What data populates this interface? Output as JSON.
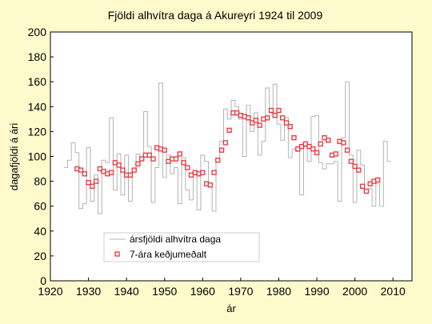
{
  "chart_data": {
    "type": "line",
    "title": "Fjöldi alhvítra daga á Akureyri 1924 til 2009",
    "xlabel": "ár",
    "ylabel": "dagafjöldi á ári",
    "xlim": [
      1920,
      2015
    ],
    "ylim": [
      0,
      200
    ],
    "xticks": [
      1920,
      1930,
      1940,
      1950,
      1960,
      1970,
      1980,
      1990,
      2000,
      2010
    ],
    "yticks": [
      0,
      20,
      40,
      60,
      80,
      100,
      120,
      140,
      160,
      180,
      200
    ],
    "grid": false,
    "legend_position": "bottom-left",
    "colors": {
      "background": "#fdfbcc",
      "plot_area": "#ffffff",
      "annual_line": "#b3b3b3",
      "rolling_marker": "#e8343a"
    },
    "series": [
      {
        "name": "ársfjöldi alhvítra daga",
        "style": "step",
        "x": [
          1924,
          1925,
          1926,
          1927,
          1928,
          1929,
          1930,
          1931,
          1932,
          1933,
          1934,
          1935,
          1936,
          1937,
          1938,
          1939,
          1940,
          1941,
          1942,
          1943,
          1944,
          1945,
          1946,
          1947,
          1948,
          1949,
          1950,
          1951,
          1952,
          1953,
          1954,
          1955,
          1956,
          1957,
          1958,
          1959,
          1960,
          1961,
          1962,
          1963,
          1964,
          1965,
          1966,
          1967,
          1968,
          1969,
          1970,
          1971,
          1972,
          1973,
          1974,
          1975,
          1976,
          1977,
          1978,
          1979,
          1980,
          1981,
          1982,
          1983,
          1984,
          1985,
          1986,
          1987,
          1988,
          1989,
          1990,
          1991,
          1992,
          1993,
          1994,
          1995,
          1996,
          1997,
          1998,
          1999,
          2000,
          2001,
          2002,
          2003,
          2004,
          2005,
          2006,
          2007,
          2008,
          2009
        ],
        "y": [
          91,
          97,
          111,
          103,
          58,
          62,
          107,
          64,
          85,
          54,
          97,
          95,
          131,
          73,
          102,
          69,
          101,
          64,
          90,
          102,
          98,
          136,
          108,
          63,
          91,
          159,
          83,
          101,
          86,
          91,
          62,
          99,
          73,
          65,
          87,
          57,
          101,
          96,
          76,
          56,
          97,
          112,
          138,
          130,
          145,
          140,
          130,
          100,
          141,
          120,
          135,
          101,
          112,
          155,
          135,
          158,
          126,
          113,
          131,
          99,
          106,
          104,
          69,
          108,
          96,
          132,
          133,
          95,
          90,
          94,
          94,
          96,
          64,
          115,
          160,
          101,
          63,
          105,
          93,
          73,
          74,
          60,
          78,
          60,
          112,
          96
        ]
      },
      {
        "name": "7-ára keðjumeðalt",
        "style": "markers",
        "x": [
          1927,
          1928,
          1929,
          1930,
          1931,
          1932,
          1933,
          1934,
          1935,
          1936,
          1937,
          1938,
          1939,
          1940,
          1941,
          1942,
          1943,
          1944,
          1945,
          1946,
          1947,
          1948,
          1949,
          1950,
          1951,
          1952,
          1953,
          1954,
          1955,
          1956,
          1957,
          1958,
          1959,
          1960,
          1961,
          1962,
          1963,
          1964,
          1965,
          1966,
          1967,
          1968,
          1969,
          1970,
          1971,
          1972,
          1973,
          1974,
          1975,
          1976,
          1977,
          1978,
          1979,
          1980,
          1981,
          1982,
          1983,
          1984,
          1985,
          1986,
          1987,
          1988,
          1989,
          1990,
          1991,
          1992,
          1993,
          1994,
          1995,
          1996,
          1997,
          1998,
          1999,
          2000,
          2001,
          2002,
          2003,
          2004,
          2005,
          2006
        ],
        "y": [
          90,
          89,
          86,
          79,
          76,
          80,
          90,
          88,
          86,
          87,
          95,
          93,
          89,
          85,
          85,
          89,
          94,
          98,
          101,
          101,
          98,
          107,
          106,
          105,
          96,
          98,
          98,
          102,
          95,
          91,
          85,
          87,
          86,
          87,
          78,
          77,
          87,
          97,
          105,
          111,
          121,
          135,
          135,
          133,
          132,
          131,
          127,
          129,
          125,
          130,
          131,
          137,
          133,
          137,
          131,
          127,
          124,
          115,
          106,
          108,
          110,
          108,
          106,
          103,
          110,
          115,
          113,
          101,
          102,
          112,
          111,
          105,
          96,
          92,
          89,
          76,
          72,
          78,
          80,
          81
        ]
      }
    ]
  }
}
